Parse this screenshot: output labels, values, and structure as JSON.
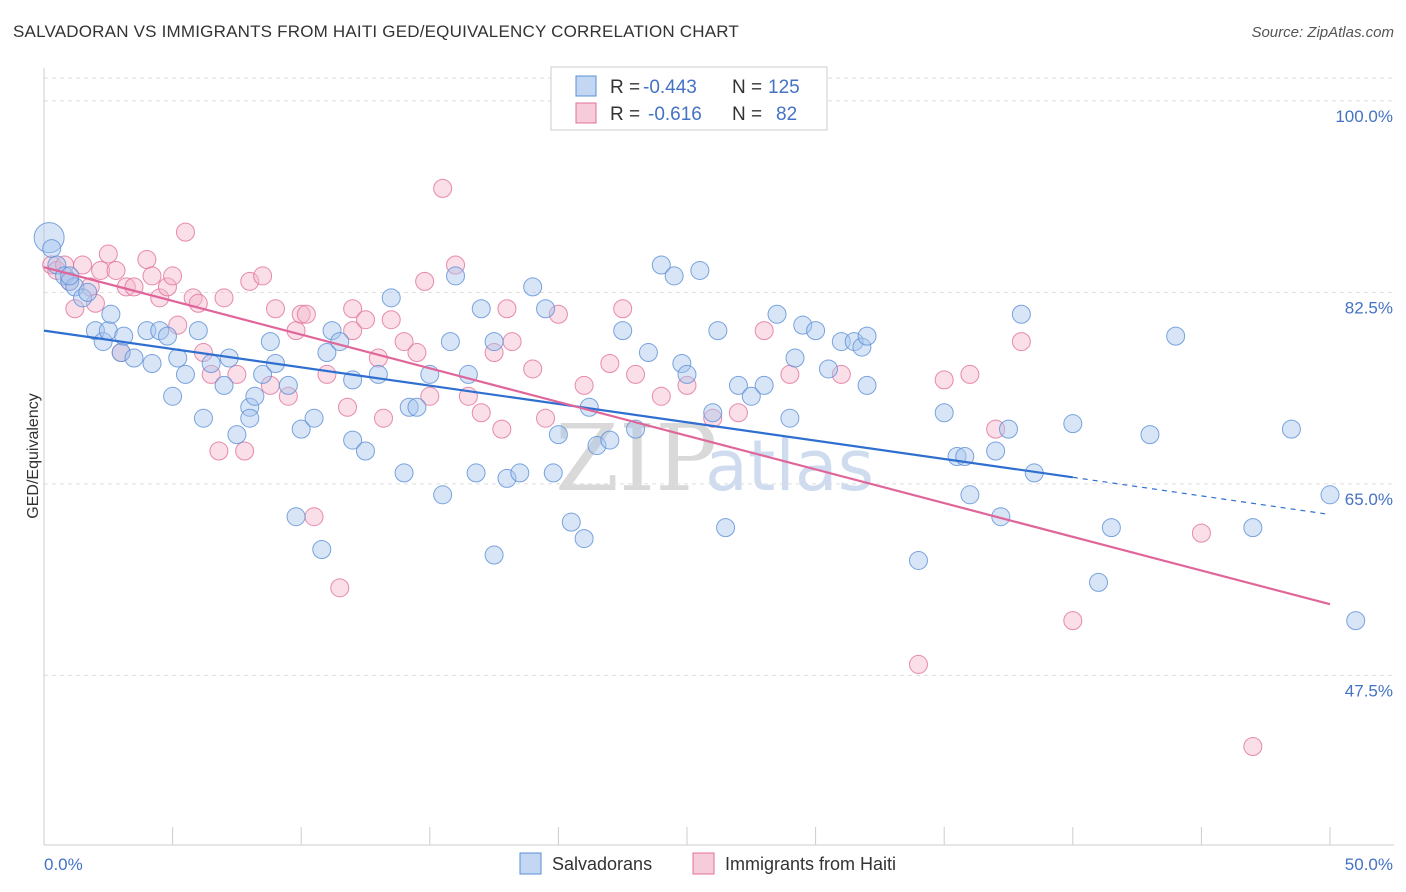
{
  "title": "SALVADORAN VS IMMIGRANTS FROM HAITI GED/EQUIVALENCY CORRELATION CHART",
  "source": "Source: ZipAtlas.com",
  "colors": {
    "blue": "#5b8fd6",
    "blue_fill": "#a9c6ee",
    "pink": "#e1709a",
    "pink_fill": "#f4b6cb",
    "grid": "#dddddd",
    "axis_text": "#4472c4"
  },
  "legend": {
    "row1": {
      "r_label": "R =",
      "r_value": "-0.443",
      "n_label": "N =",
      "n_value": "125"
    },
    "row2": {
      "r_label": "R =",
      "r_value": "-0.616",
      "n_label": "N =",
      "n_value": "82"
    }
  },
  "watermark": {
    "zip": "ZIP",
    "atlas": "atlas"
  },
  "chart_data": {
    "type": "scatter",
    "xlabel": "",
    "ylabel": "GED/Equivalency",
    "xlim": [
      0,
      50
    ],
    "ylim": [
      32,
      103
    ],
    "x_ticks": [
      "0.0%",
      "50.0%"
    ],
    "y_ticks": [
      {
        "value": 100,
        "label": "100.0%"
      },
      {
        "value": 82.5,
        "label": "82.5%"
      },
      {
        "value": 65,
        "label": "65.0%"
      },
      {
        "value": 47.5,
        "label": "47.5%"
      }
    ],
    "series": [
      {
        "name": "Salvadorans",
        "color": "blue",
        "trend": {
          "x0": 0,
          "y0": 79.0,
          "x1": 40,
          "y1": 65.6,
          "dash_to_x": 50,
          "dash_to_y": 62.2
        },
        "points": [
          [
            0.2,
            87.5
          ],
          [
            0.3,
            86.5
          ],
          [
            0.5,
            85
          ],
          [
            0.8,
            84
          ],
          [
            1,
            83.5
          ],
          [
            1.2,
            83
          ],
          [
            1,
            84
          ],
          [
            1.5,
            82
          ],
          [
            1.7,
            82.5
          ],
          [
            2,
            79
          ],
          [
            2.3,
            78
          ],
          [
            2.5,
            79
          ],
          [
            2.6,
            80.5
          ],
          [
            3,
            77
          ],
          [
            3.1,
            78.5
          ],
          [
            3.5,
            76.5
          ],
          [
            4,
            79
          ],
          [
            4.2,
            76
          ],
          [
            4.5,
            79
          ],
          [
            4.8,
            78.5
          ],
          [
            5,
            73
          ],
          [
            5.2,
            76.5
          ],
          [
            5.5,
            75
          ],
          [
            6,
            79
          ],
          [
            6.2,
            71
          ],
          [
            6.5,
            76
          ],
          [
            7,
            74
          ],
          [
            7.2,
            76.5
          ],
          [
            7.5,
            69.5
          ],
          [
            8,
            72
          ],
          [
            8,
            71
          ],
          [
            8.2,
            73
          ],
          [
            8.5,
            75
          ],
          [
            8.8,
            78
          ],
          [
            9,
            76
          ],
          [
            9.5,
            74
          ],
          [
            9.8,
            62
          ],
          [
            10,
            70
          ],
          [
            10.5,
            71
          ],
          [
            10.8,
            59
          ],
          [
            11,
            77
          ],
          [
            11.2,
            79
          ],
          [
            11.5,
            78
          ],
          [
            12,
            74.5
          ],
          [
            12,
            69
          ],
          [
            12.5,
            68
          ],
          [
            13,
            75
          ],
          [
            13.5,
            82
          ],
          [
            14,
            66
          ],
          [
            14.2,
            72
          ],
          [
            14.5,
            72
          ],
          [
            15,
            75
          ],
          [
            15.5,
            64
          ],
          [
            15.8,
            78
          ],
          [
            16,
            84
          ],
          [
            16.5,
            75
          ],
          [
            16.8,
            66
          ],
          [
            17,
            81
          ],
          [
            17.5,
            78
          ],
          [
            17.5,
            58.5
          ],
          [
            18,
            65.5
          ],
          [
            18.5,
            66
          ],
          [
            19,
            83
          ],
          [
            19.5,
            81
          ],
          [
            19.8,
            66
          ],
          [
            20,
            69.5
          ],
          [
            20.5,
            61.5
          ],
          [
            21,
            60
          ],
          [
            21.2,
            72
          ],
          [
            21.5,
            68.5
          ],
          [
            22,
            69
          ],
          [
            22.5,
            79
          ],
          [
            23,
            70
          ],
          [
            23.5,
            77
          ],
          [
            24,
            85
          ],
          [
            24.5,
            84
          ],
          [
            24.8,
            76
          ],
          [
            25,
            75
          ],
          [
            25.5,
            84.5
          ],
          [
            26,
            71.5
          ],
          [
            26.2,
            79
          ],
          [
            26.5,
            61
          ],
          [
            27,
            74
          ],
          [
            27.5,
            73
          ],
          [
            28,
            74
          ],
          [
            28.5,
            80.5
          ],
          [
            29,
            71
          ],
          [
            29.2,
            76.5
          ],
          [
            29.5,
            79.5
          ],
          [
            30,
            79
          ],
          [
            30.5,
            75.5
          ],
          [
            31,
            78
          ],
          [
            31.5,
            78
          ],
          [
            31.8,
            77.5
          ],
          [
            32,
            74
          ],
          [
            32,
            78.5
          ],
          [
            34,
            58
          ],
          [
            35,
            71.5
          ],
          [
            35.5,
            67.5
          ],
          [
            35.8,
            67.5
          ],
          [
            36,
            64
          ],
          [
            37,
            68
          ],
          [
            37.2,
            62
          ],
          [
            37.5,
            70
          ],
          [
            38,
            80.5
          ],
          [
            38.5,
            66
          ],
          [
            40,
            70.5
          ],
          [
            41,
            56
          ],
          [
            41.5,
            61
          ],
          [
            43,
            69.5
          ],
          [
            44,
            78.5
          ],
          [
            47,
            61
          ],
          [
            48.5,
            70
          ],
          [
            50,
            64
          ],
          [
            51,
            52.5
          ]
        ]
      },
      {
        "name": "Immigrants from Haiti",
        "color": "pink",
        "trend": {
          "x0": 0,
          "y0": 84.8,
          "x1": 50,
          "y1": 54.0
        },
        "points": [
          [
            0.3,
            85
          ],
          [
            0.5,
            84.5
          ],
          [
            0.8,
            85
          ],
          [
            1,
            83.5
          ],
          [
            1.2,
            81
          ],
          [
            1.5,
            85
          ],
          [
            1.8,
            83
          ],
          [
            2,
            81.5
          ],
          [
            2.2,
            84.5
          ],
          [
            2.5,
            86
          ],
          [
            2.8,
            84.5
          ],
          [
            3,
            77
          ],
          [
            3.2,
            83
          ],
          [
            3.5,
            83
          ],
          [
            4,
            85.5
          ],
          [
            4.2,
            84
          ],
          [
            4.5,
            82
          ],
          [
            4.8,
            83
          ],
          [
            5,
            84
          ],
          [
            5.2,
            79.5
          ],
          [
            5.5,
            88
          ],
          [
            5.8,
            82
          ],
          [
            6,
            81.5
          ],
          [
            6.2,
            77
          ],
          [
            6.5,
            75
          ],
          [
            6.8,
            68
          ],
          [
            7,
            82
          ],
          [
            7.5,
            75
          ],
          [
            7.8,
            68
          ],
          [
            8,
            83.5
          ],
          [
            8.5,
            84
          ],
          [
            8.8,
            74
          ],
          [
            9,
            81
          ],
          [
            9.5,
            73
          ],
          [
            9.8,
            79
          ],
          [
            10,
            80.5
          ],
          [
            10.2,
            80.5
          ],
          [
            10.5,
            62
          ],
          [
            11,
            75
          ],
          [
            11.5,
            55.5
          ],
          [
            11.8,
            72
          ],
          [
            12,
            81
          ],
          [
            12,
            79
          ],
          [
            12.5,
            80
          ],
          [
            13,
            76.5
          ],
          [
            13.2,
            71
          ],
          [
            13.5,
            80
          ],
          [
            14,
            78
          ],
          [
            14.5,
            77
          ],
          [
            14.8,
            83.5
          ],
          [
            15,
            73
          ],
          [
            15.5,
            92
          ],
          [
            16,
            85
          ],
          [
            16.5,
            73
          ],
          [
            17,
            71.5
          ],
          [
            17.5,
            77
          ],
          [
            17.8,
            70
          ],
          [
            18,
            81
          ],
          [
            18.2,
            78
          ],
          [
            19,
            75.5
          ],
          [
            19.5,
            71
          ],
          [
            20,
            80.5
          ],
          [
            21,
            74
          ],
          [
            22,
            76
          ],
          [
            22.5,
            81
          ],
          [
            23,
            75
          ],
          [
            24,
            73
          ],
          [
            25,
            74
          ],
          [
            26,
            71
          ],
          [
            27,
            71.5
          ],
          [
            28,
            79
          ],
          [
            29,
            75
          ],
          [
            31,
            75
          ],
          [
            34,
            48.5
          ],
          [
            35,
            74.5
          ],
          [
            36,
            75
          ],
          [
            37,
            70
          ],
          [
            38,
            78
          ],
          [
            40,
            52.5
          ],
          [
            45,
            60.5
          ],
          [
            47,
            41
          ]
        ]
      }
    ]
  },
  "bottom_legend": {
    "items": [
      {
        "label": "Salvadorans"
      },
      {
        "label": "Immigrants from Haiti"
      }
    ]
  }
}
